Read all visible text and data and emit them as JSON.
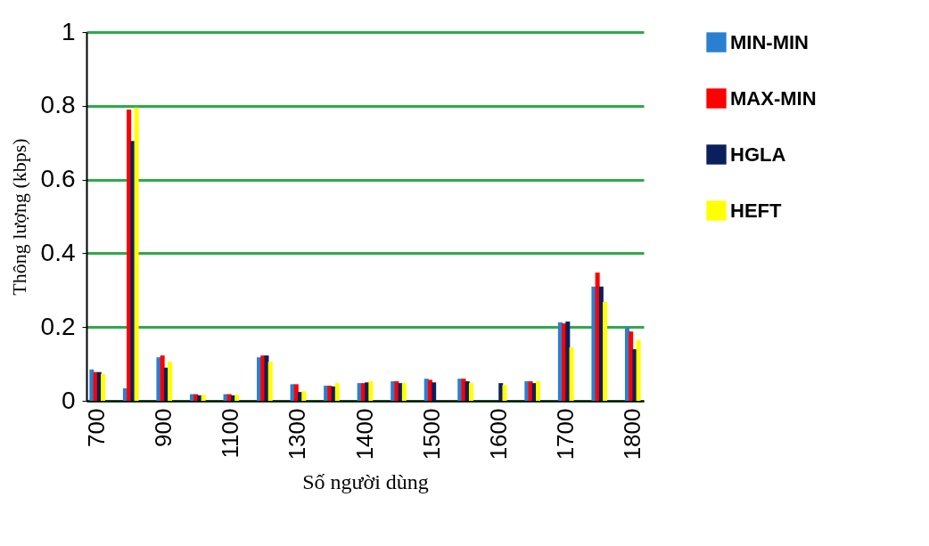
{
  "chart_data": {
    "type": "bar",
    "xlabel": "Số người dùng",
    "ylabel": "Thông lượng (kbps)",
    "categories": [
      "700",
      null,
      "900",
      null,
      "1100",
      null,
      "1300",
      null,
      "1400",
      null,
      "1500",
      null,
      "1600",
      null,
      "1700",
      null,
      "1800"
    ],
    "series": [
      {
        "name": "MIN-MIN",
        "color": "#2a7fd0",
        "values": [
          0.085,
          0.034,
          0.118,
          0.018,
          0.018,
          0.118,
          0.045,
          0.041,
          0.048,
          0.053,
          0.06,
          0.06,
          null,
          0.053,
          0.213,
          0.31,
          0.2
        ]
      },
      {
        "name": "MAX-MIN",
        "color": "#ff0000",
        "values": [
          0.078,
          0.79,
          0.123,
          0.018,
          0.018,
          0.123,
          0.045,
          0.041,
          0.048,
          0.053,
          0.057,
          0.06,
          null,
          0.053,
          0.21,
          0.348,
          0.188
        ]
      },
      {
        "name": "HGLA",
        "color": "#0b1f5c",
        "values": [
          0.078,
          0.705,
          0.09,
          0.015,
          0.015,
          0.123,
          0.024,
          0.039,
          0.05,
          0.048,
          0.05,
          0.053,
          0.048,
          0.048,
          0.215,
          0.31,
          0.14
        ]
      },
      {
        "name": "HEFT",
        "color": "#ffff00",
        "values": [
          0.073,
          0.795,
          0.106,
          0.016,
          0.016,
          0.106,
          0.026,
          0.048,
          0.053,
          0.048,
          null,
          0.048,
          0.043,
          0.053,
          0.145,
          0.268,
          0.164
        ]
      }
    ],
    "ylim": [
      0,
      1
    ],
    "yticks": [
      0,
      0.2,
      0.4,
      0.6,
      0.8,
      1
    ],
    "grid": "y",
    "legend": "right"
  }
}
